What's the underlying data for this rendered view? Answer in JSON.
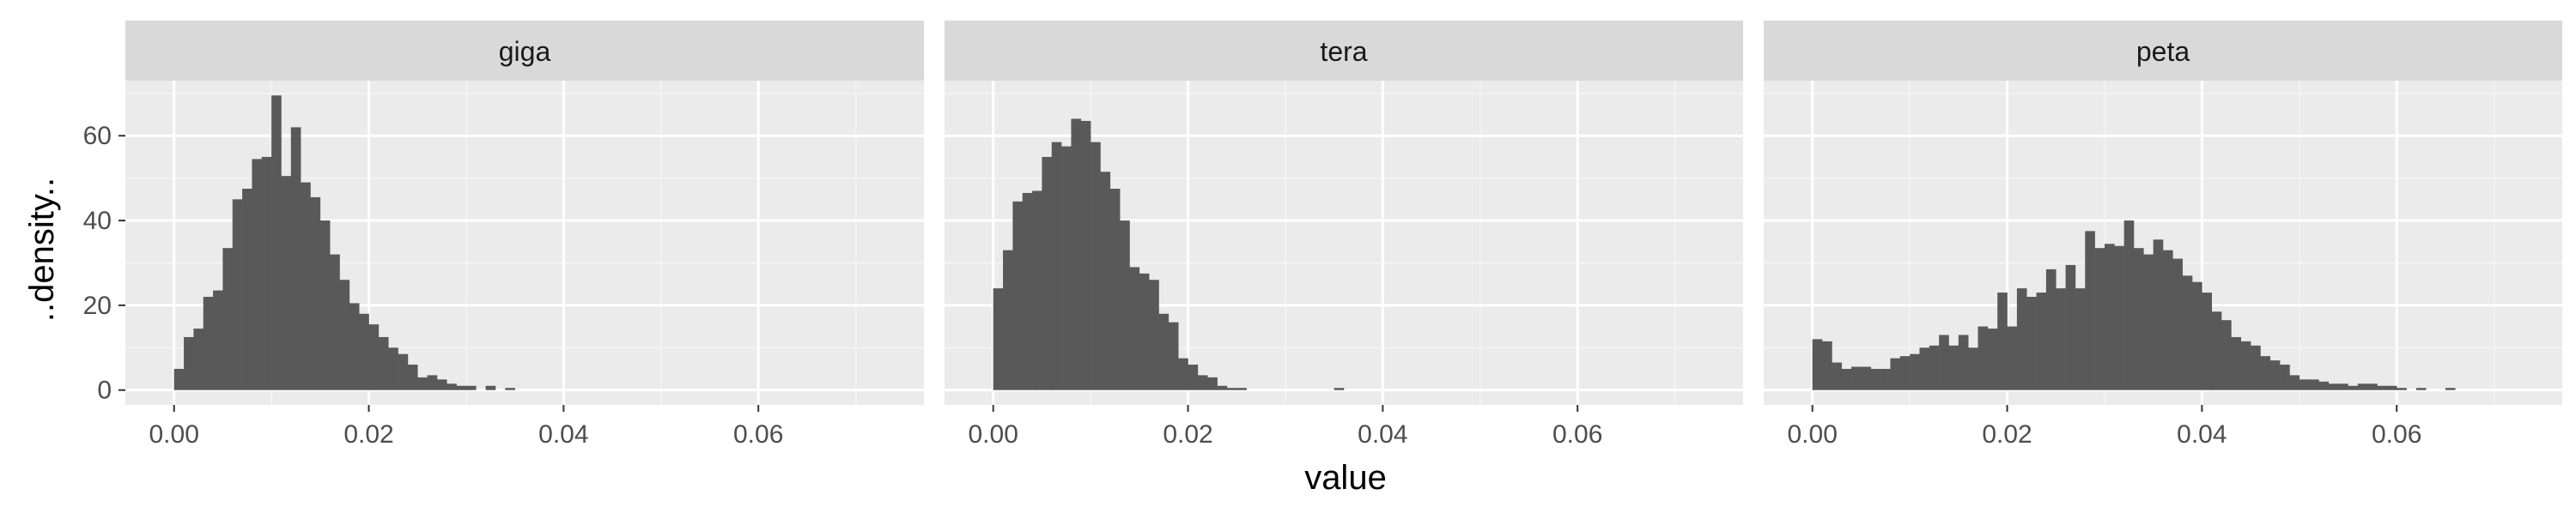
{
  "chart_data": {
    "type": "bar",
    "xlabel": "value",
    "ylabel": "..density..",
    "xlim": [
      -0.005,
      0.077
    ],
    "ylim": [
      -3.5,
      73
    ],
    "x_ticks": [
      0.0,
      0.02,
      0.04,
      0.06
    ],
    "x_tick_labels": [
      "0.00",
      "0.02",
      "0.04",
      "0.06"
    ],
    "y_ticks": [
      0,
      20,
      40,
      60
    ],
    "y_tick_labels": [
      "0",
      "20",
      "40",
      "60"
    ],
    "bin_width": 0.001,
    "bin_start": 0.0,
    "grid": true,
    "facets": [
      {
        "label": "giga",
        "values": [
          5,
          12.5,
          14.5,
          22,
          23.5,
          33.5,
          45,
          47.5,
          54.5,
          55,
          69.5,
          50.5,
          62,
          49,
          45.5,
          40,
          32,
          26,
          20.5,
          18,
          15.5,
          12.5,
          10,
          8.5,
          6,
          3,
          3.5,
          2.5,
          1.5,
          1,
          1,
          0,
          1,
          0,
          0.5,
          0,
          0,
          0,
          0,
          0,
          0,
          0,
          0,
          0,
          0,
          0,
          0,
          0,
          0,
          0,
          0,
          0,
          0,
          0,
          0,
          0,
          0,
          0,
          0,
          0,
          0,
          0,
          0,
          0,
          0,
          0,
          0,
          0,
          0,
          0,
          0,
          0
        ]
      },
      {
        "label": "tera",
        "values": [
          24,
          33,
          44.5,
          46.5,
          47,
          55,
          58.5,
          57.5,
          64,
          63.5,
          58.5,
          51.5,
          47.5,
          40,
          29,
          27.5,
          26,
          18,
          16,
          7.5,
          6,
          3.5,
          3,
          1,
          0.5,
          0.5,
          0,
          0,
          0,
          0,
          0,
          0,
          0,
          0,
          0,
          0.5,
          0,
          0,
          0,
          0,
          0,
          0,
          0,
          0,
          0,
          0,
          0,
          0,
          0,
          0,
          0,
          0,
          0,
          0,
          0,
          0,
          0,
          0,
          0,
          0,
          0,
          0,
          0,
          0,
          0,
          0,
          0,
          0,
          0,
          0,
          0,
          0
        ]
      },
      {
        "label": "peta",
        "values": [
          12,
          11.5,
          6.5,
          5,
          5.5,
          5.5,
          5,
          5,
          7.5,
          8,
          8.5,
          10,
          10.5,
          13,
          10.5,
          13,
          10,
          15,
          14.5,
          23,
          15,
          24,
          22,
          23,
          28.5,
          24,
          29.5,
          24,
          37.5,
          33.5,
          34.5,
          34,
          40,
          33.5,
          32,
          35.5,
          33,
          31,
          27,
          25.5,
          23,
          18.5,
          16.5,
          12.5,
          11.5,
          10.5,
          8,
          7,
          6,
          3.5,
          2.5,
          2.5,
          2,
          1.5,
          1.5,
          1,
          1.5,
          1.5,
          1,
          1,
          0.5,
          0,
          0.5,
          0,
          0,
          0.5,
          0,
          0,
          0,
          0,
          0,
          0
        ]
      }
    ]
  }
}
